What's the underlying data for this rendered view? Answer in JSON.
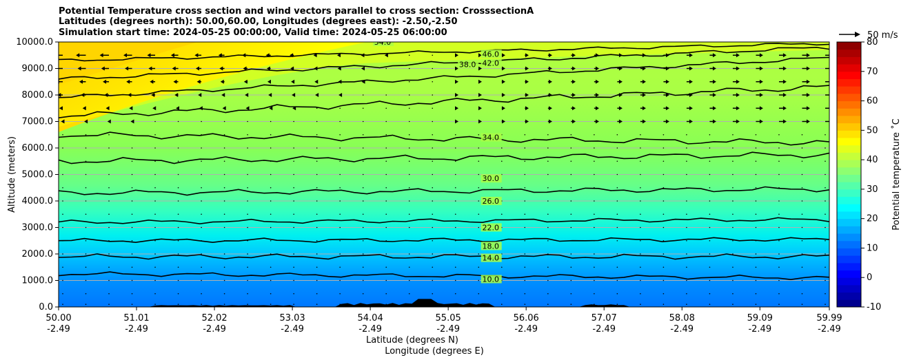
{
  "chart_data": {
    "type": "heatmap",
    "title_lines": [
      "Potential Temperature cross section and wind vectors parallel to cross section: CrosssectionA",
      "Latitudes (degrees north): 50.00,60.00, Longitudes (degrees east): -2.50,-2.50",
      "Simulation start time: 2024-05-25 00:00:00, Valid time: 2024-05-25 06:00:00"
    ],
    "ylabel": "Altitude (meters)",
    "xlabel_lines": [
      "Latitude (degrees N)",
      "Longitude (degrees E)"
    ],
    "yticks": [
      "0.0",
      "1000.0",
      "2000.0",
      "3000.0",
      "4000.0",
      "5000.0",
      "6000.0",
      "7000.0",
      "8000.0",
      "9000.0",
      "10000.0"
    ],
    "ylim": [
      0,
      10000
    ],
    "xlim": [
      50.0,
      59.99
    ],
    "xticks": [
      {
        "lat": "50.00",
        "lon": "-2.49"
      },
      {
        "lat": "51.01",
        "lon": "-2.49"
      },
      {
        "lat": "52.02",
        "lon": "-2.49"
      },
      {
        "lat": "53.03",
        "lon": "-2.49"
      },
      {
        "lat": "54.04",
        "lon": "-2.49"
      },
      {
        "lat": "55.05",
        "lon": "-2.49"
      },
      {
        "lat": "56.06",
        "lon": "-2.49"
      },
      {
        "lat": "57.07",
        "lon": "-2.49"
      },
      {
        "lat": "58.08",
        "lon": "-2.49"
      },
      {
        "lat": "59.09",
        "lon": "-2.49"
      },
      {
        "lat": "59.99",
        "lon": "-2.49"
      }
    ],
    "grid": true,
    "colorbar": {
      "label": "Potential temperature $^\\circ$C",
      "label_display": "Potential temperature ˚C",
      "min": -10,
      "max": 80,
      "ticks": [
        "-10",
        "0",
        "10",
        "20",
        "30",
        "40",
        "50",
        "60",
        "70",
        "80"
      ]
    },
    "wind_key_label": "50 m/s",
    "contour_labels": [
      "10.0",
      "14.0",
      "18.0",
      "22.0",
      "26.0",
      "30.0",
      "34.0",
      "38.0",
      "42.0",
      "46.0",
      "54.0"
    ]
  }
}
